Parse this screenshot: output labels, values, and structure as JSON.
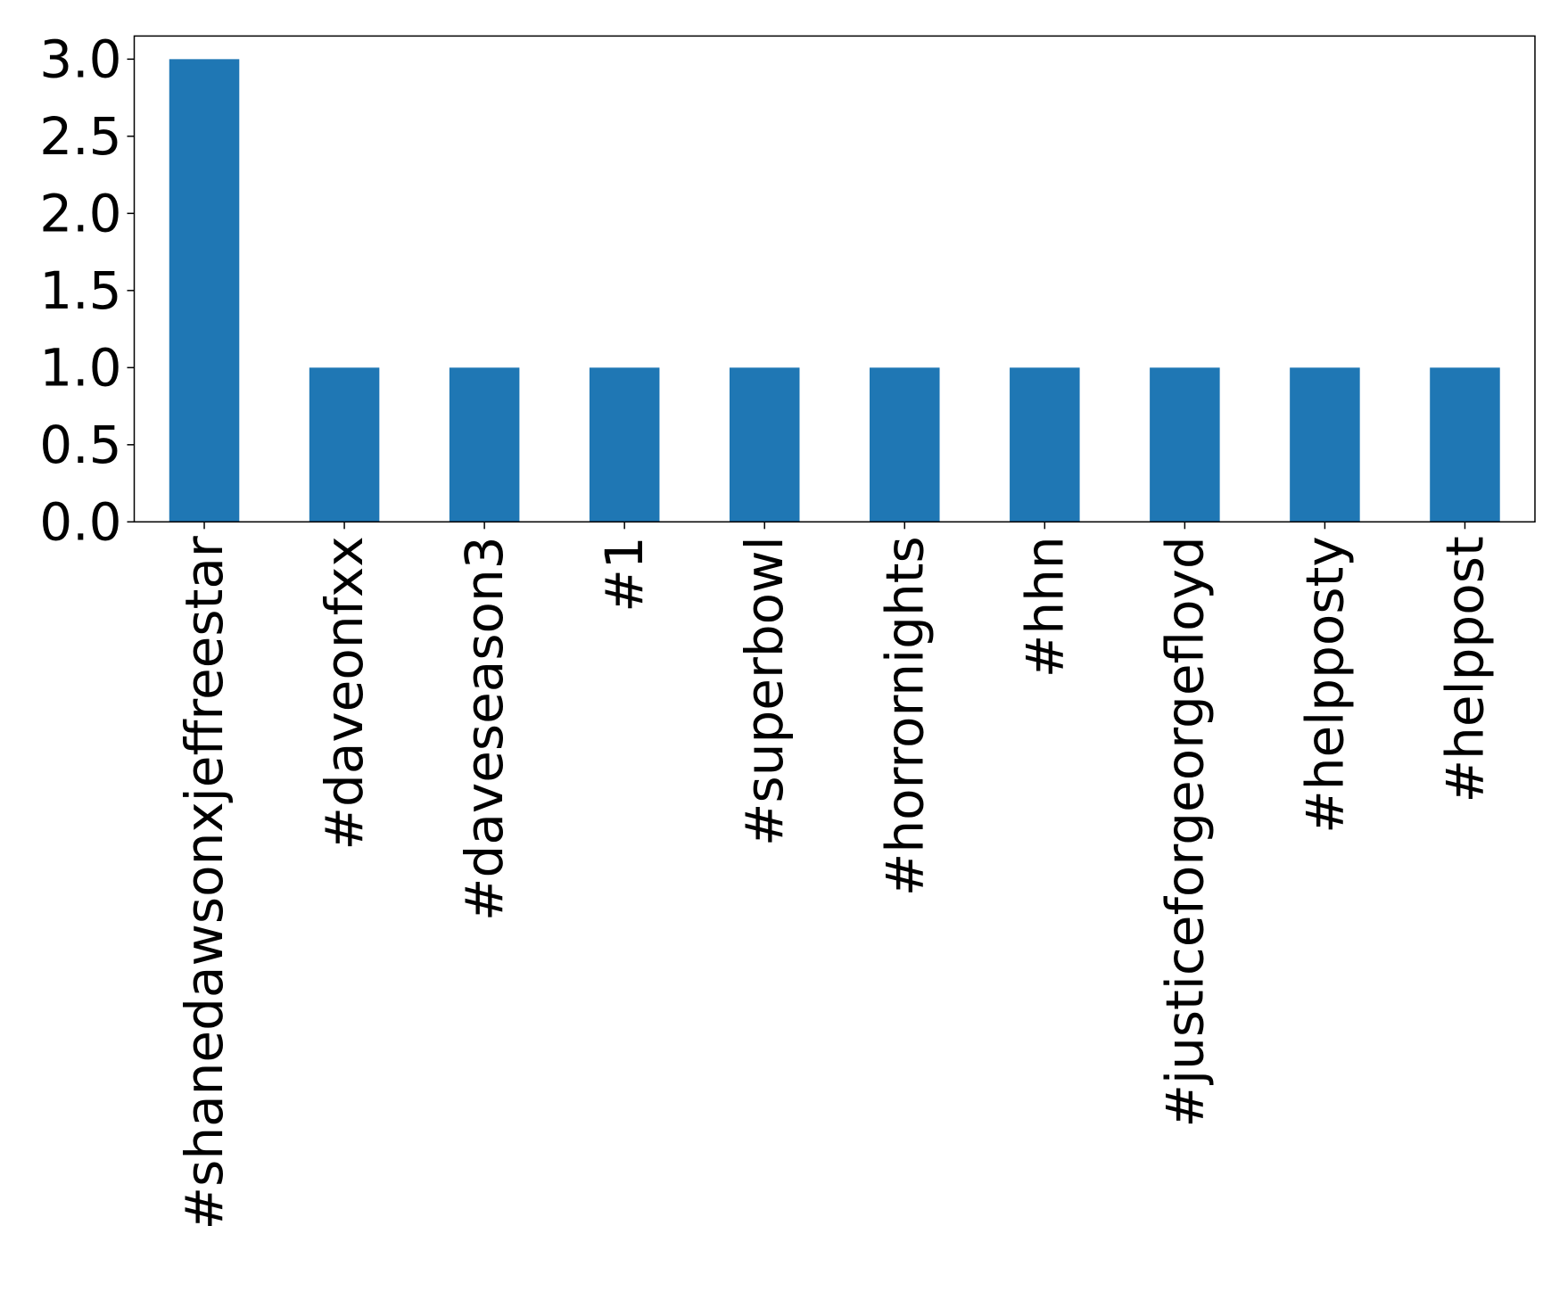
{
  "chart_data": {
    "type": "bar",
    "categories": [
      "#shanedawsonxjeffreestar",
      "#daveonfxx",
      "#daveseason3",
      "#1",
      "#superbowl",
      "#horrornights",
      "#hhn",
      "#justiceforgeorgefloyd",
      "#helpposty",
      "#helppost"
    ],
    "values": [
      3,
      1,
      1,
      1,
      1,
      1,
      1,
      1,
      1,
      1
    ],
    "color": "#1f77b4",
    "ylim": [
      0,
      3.15
    ],
    "yticks": [
      {
        "value": 0,
        "label": "0.0"
      },
      {
        "value": 0.5,
        "label": "0.5"
      },
      {
        "value": 1,
        "label": "1.0"
      },
      {
        "value": 1.5,
        "label": "1.5"
      },
      {
        "value": 2,
        "label": "2.0"
      },
      {
        "value": 2.5,
        "label": "2.5"
      },
      {
        "value": 3,
        "label": "3.0"
      }
    ],
    "grid": false
  }
}
